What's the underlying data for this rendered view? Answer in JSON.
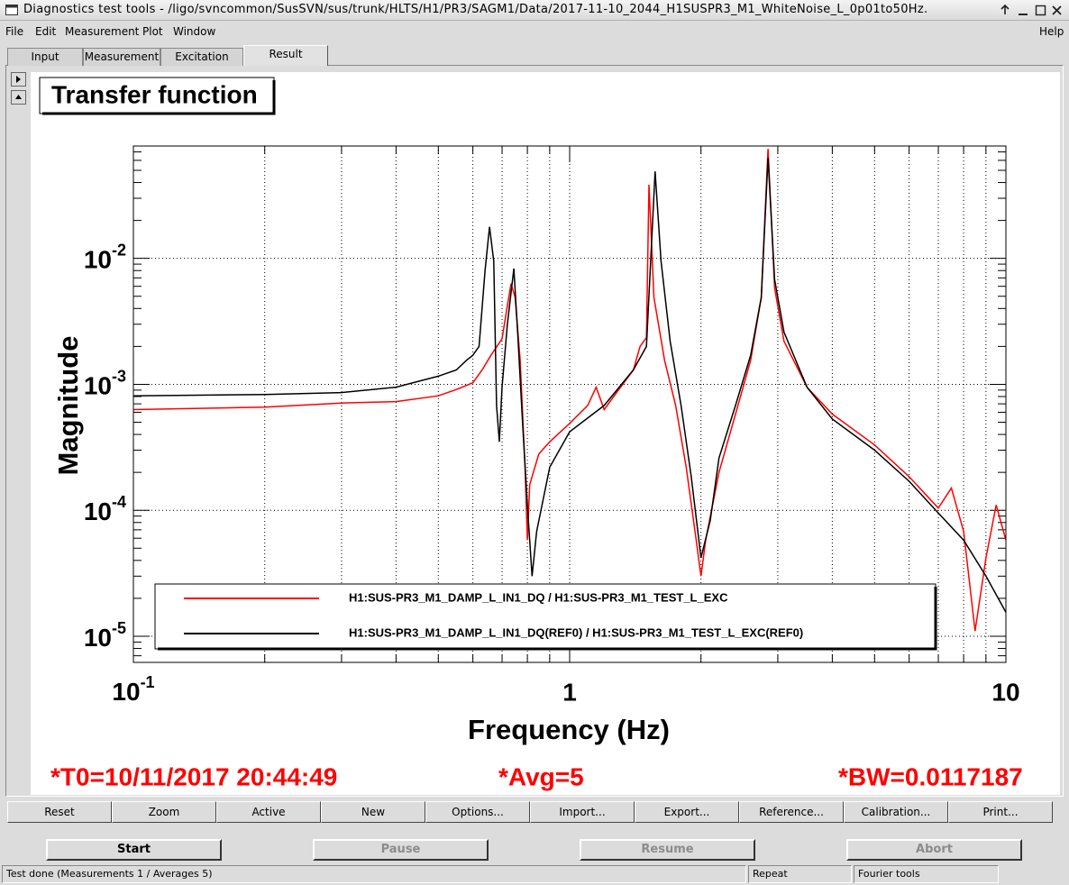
{
  "window": {
    "title": "Diagnostics test tools - /ligo/svncommon/SusSVN/sus/trunk/HLTS/H1/PR3/SAGM1/Data/2017-11-10_2044_H1SUSPR3_M1_WhiteNoise_L_0p01to50Hz."
  },
  "menu": [
    "File",
    "Edit",
    "Measurement",
    "Plot",
    "Window"
  ],
  "help": "Help",
  "tabs": [
    "Input",
    "Measurement",
    "Excitation",
    "Result"
  ],
  "chart_data": {
    "type": "line",
    "title": "Transfer function",
    "xlabel": "Frequency (Hz)",
    "ylabel": "Magnitude",
    "xscale": "log",
    "yscale": "log",
    "xlim": [
      0.1,
      10
    ],
    "ylim": [
      6.2e-06,
      0.078
    ],
    "xticks": [
      {
        "value": 0.1,
        "label": "10-1"
      },
      1,
      10
    ],
    "yticks": [
      {
        "value": 1e-05,
        "label": "10-5"
      },
      {
        "value": 0.0001,
        "label": "10-4"
      },
      {
        "value": 0.001,
        "label": "10-3"
      },
      {
        "value": 0.01,
        "label": "10-2"
      }
    ],
    "xminorticks": [
      0.2,
      0.3,
      0.4,
      0.5,
      0.6,
      0.7,
      0.8,
      0.9,
      2,
      3,
      4,
      5,
      6,
      7,
      8,
      9
    ],
    "yminorticks": [
      7e-06,
      8e-06,
      9e-06,
      2e-05,
      3e-05,
      4e-05,
      5e-05,
      6e-05,
      7e-05,
      8e-05,
      9e-05,
      0.0002,
      0.0003,
      0.0004,
      0.0005,
      0.0006,
      0.0007,
      0.0008,
      0.0009,
      0.002,
      0.003,
      0.004,
      0.005,
      0.006,
      0.007,
      0.008,
      0.009,
      0.02,
      0.03,
      0.04,
      0.05,
      0.06,
      0.07
    ],
    "grid": true,
    "legend": "bottom",
    "series": [
      {
        "name": "H1:SUS-PR3_M1_DAMP_L_IN1_DQ / H1:SUS-PR3_M1_TEST_L_EXC",
        "color": "#ff0000",
        "x": [
          0.1,
          0.2,
          0.3,
          0.4,
          0.5,
          0.55,
          0.6,
          0.63,
          0.66,
          0.7,
          0.72,
          0.734,
          0.75,
          0.77,
          0.79,
          0.8,
          0.81,
          0.85,
          0.9,
          1.0,
          1.1,
          1.15,
          1.2,
          1.3,
          1.4,
          1.45,
          1.5,
          1.52,
          1.56,
          1.65,
          1.75,
          1.85,
          1.95,
          2.0,
          2.05,
          2.2,
          2.4,
          2.6,
          2.75,
          2.85,
          2.95,
          3.1,
          3.5,
          4,
          5,
          6,
          7,
          7.5,
          8,
          8.5,
          9,
          9.5,
          10
        ],
        "values": [
          0.00063,
          0.00066,
          0.00071,
          0.00073,
          0.00081,
          0.00091,
          0.00103,
          0.0013,
          0.0017,
          0.0023,
          0.0042,
          0.0063,
          0.0049,
          0.00155,
          0.00022,
          5.8e-05,
          0.00016,
          0.00028,
          0.00035,
          0.00049,
          0.00068,
          0.00095,
          0.00063,
          0.00092,
          0.0013,
          0.002,
          0.00235,
          0.0385,
          0.0049,
          0.00155,
          0.00068,
          0.00022,
          5.8e-05,
          3e-05,
          5.8e-05,
          0.0002,
          0.00058,
          0.00155,
          0.0049,
          0.074,
          0.0058,
          0.0022,
          0.00095,
          0.00058,
          0.00033,
          0.000185,
          0.000104,
          0.00015,
          6.8e-05,
          1.1e-05,
          4.2e-05,
          0.00011,
          5.8e-05
        ]
      },
      {
        "name": "H1:SUS-PR3_M1_DAMP_L_IN1_DQ(REF0) / H1:SUS-PR3_M1_TEST_L_EXC(REF0)",
        "color": "#000000",
        "x": [
          0.1,
          0.2,
          0.3,
          0.4,
          0.5,
          0.55,
          0.58,
          0.6,
          0.62,
          0.64,
          0.655,
          0.67,
          0.68,
          0.69,
          0.7,
          0.72,
          0.745,
          0.76,
          0.78,
          0.8,
          0.82,
          0.84,
          0.9,
          1.0,
          1.2,
          1.4,
          1.5,
          1.57,
          1.62,
          1.7,
          1.8,
          1.9,
          2.0,
          2.1,
          2.2,
          2.4,
          2.6,
          2.75,
          2.85,
          2.95,
          3.1,
          3.5,
          4,
          5,
          6,
          7,
          8,
          9,
          10
        ],
        "values": [
          0.00081,
          0.00083,
          0.00086,
          0.00095,
          0.00116,
          0.0013,
          0.00155,
          0.0017,
          0.002,
          0.0081,
          0.0178,
          0.0095,
          0.00068,
          0.00035,
          0.00095,
          0.003,
          0.0083,
          0.0026,
          0.00049,
          0.00011,
          3e-05,
          6.8e-05,
          0.00022,
          0.00042,
          0.00068,
          0.0013,
          0.002,
          0.049,
          0.0095,
          0.0022,
          0.00068,
          0.000185,
          4.2e-05,
          8.3e-05,
          0.00026,
          0.00068,
          0.0017,
          0.0049,
          0.063,
          0.0068,
          0.0026,
          0.00095,
          0.00053,
          0.0003,
          0.00017,
          9.5e-05,
          5.8e-05,
          3e-05,
          1.55e-05
        ]
      }
    ],
    "annotations": [
      "*T0=10/11/2017 20:44:49",
      "*Avg=5",
      "*BW=0.0117187"
    ]
  },
  "buttons": [
    "Reset",
    "Zoom",
    "Active",
    "New",
    "Options...",
    "Import...",
    "Export...",
    "Reference...",
    "Calibration...",
    "Print..."
  ],
  "controls": [
    "Start",
    "Pause",
    "Resume",
    "Abort"
  ],
  "status": [
    "Test done (Measurements 1 / Averages 5)",
    "Repeat",
    "Fourier tools"
  ]
}
